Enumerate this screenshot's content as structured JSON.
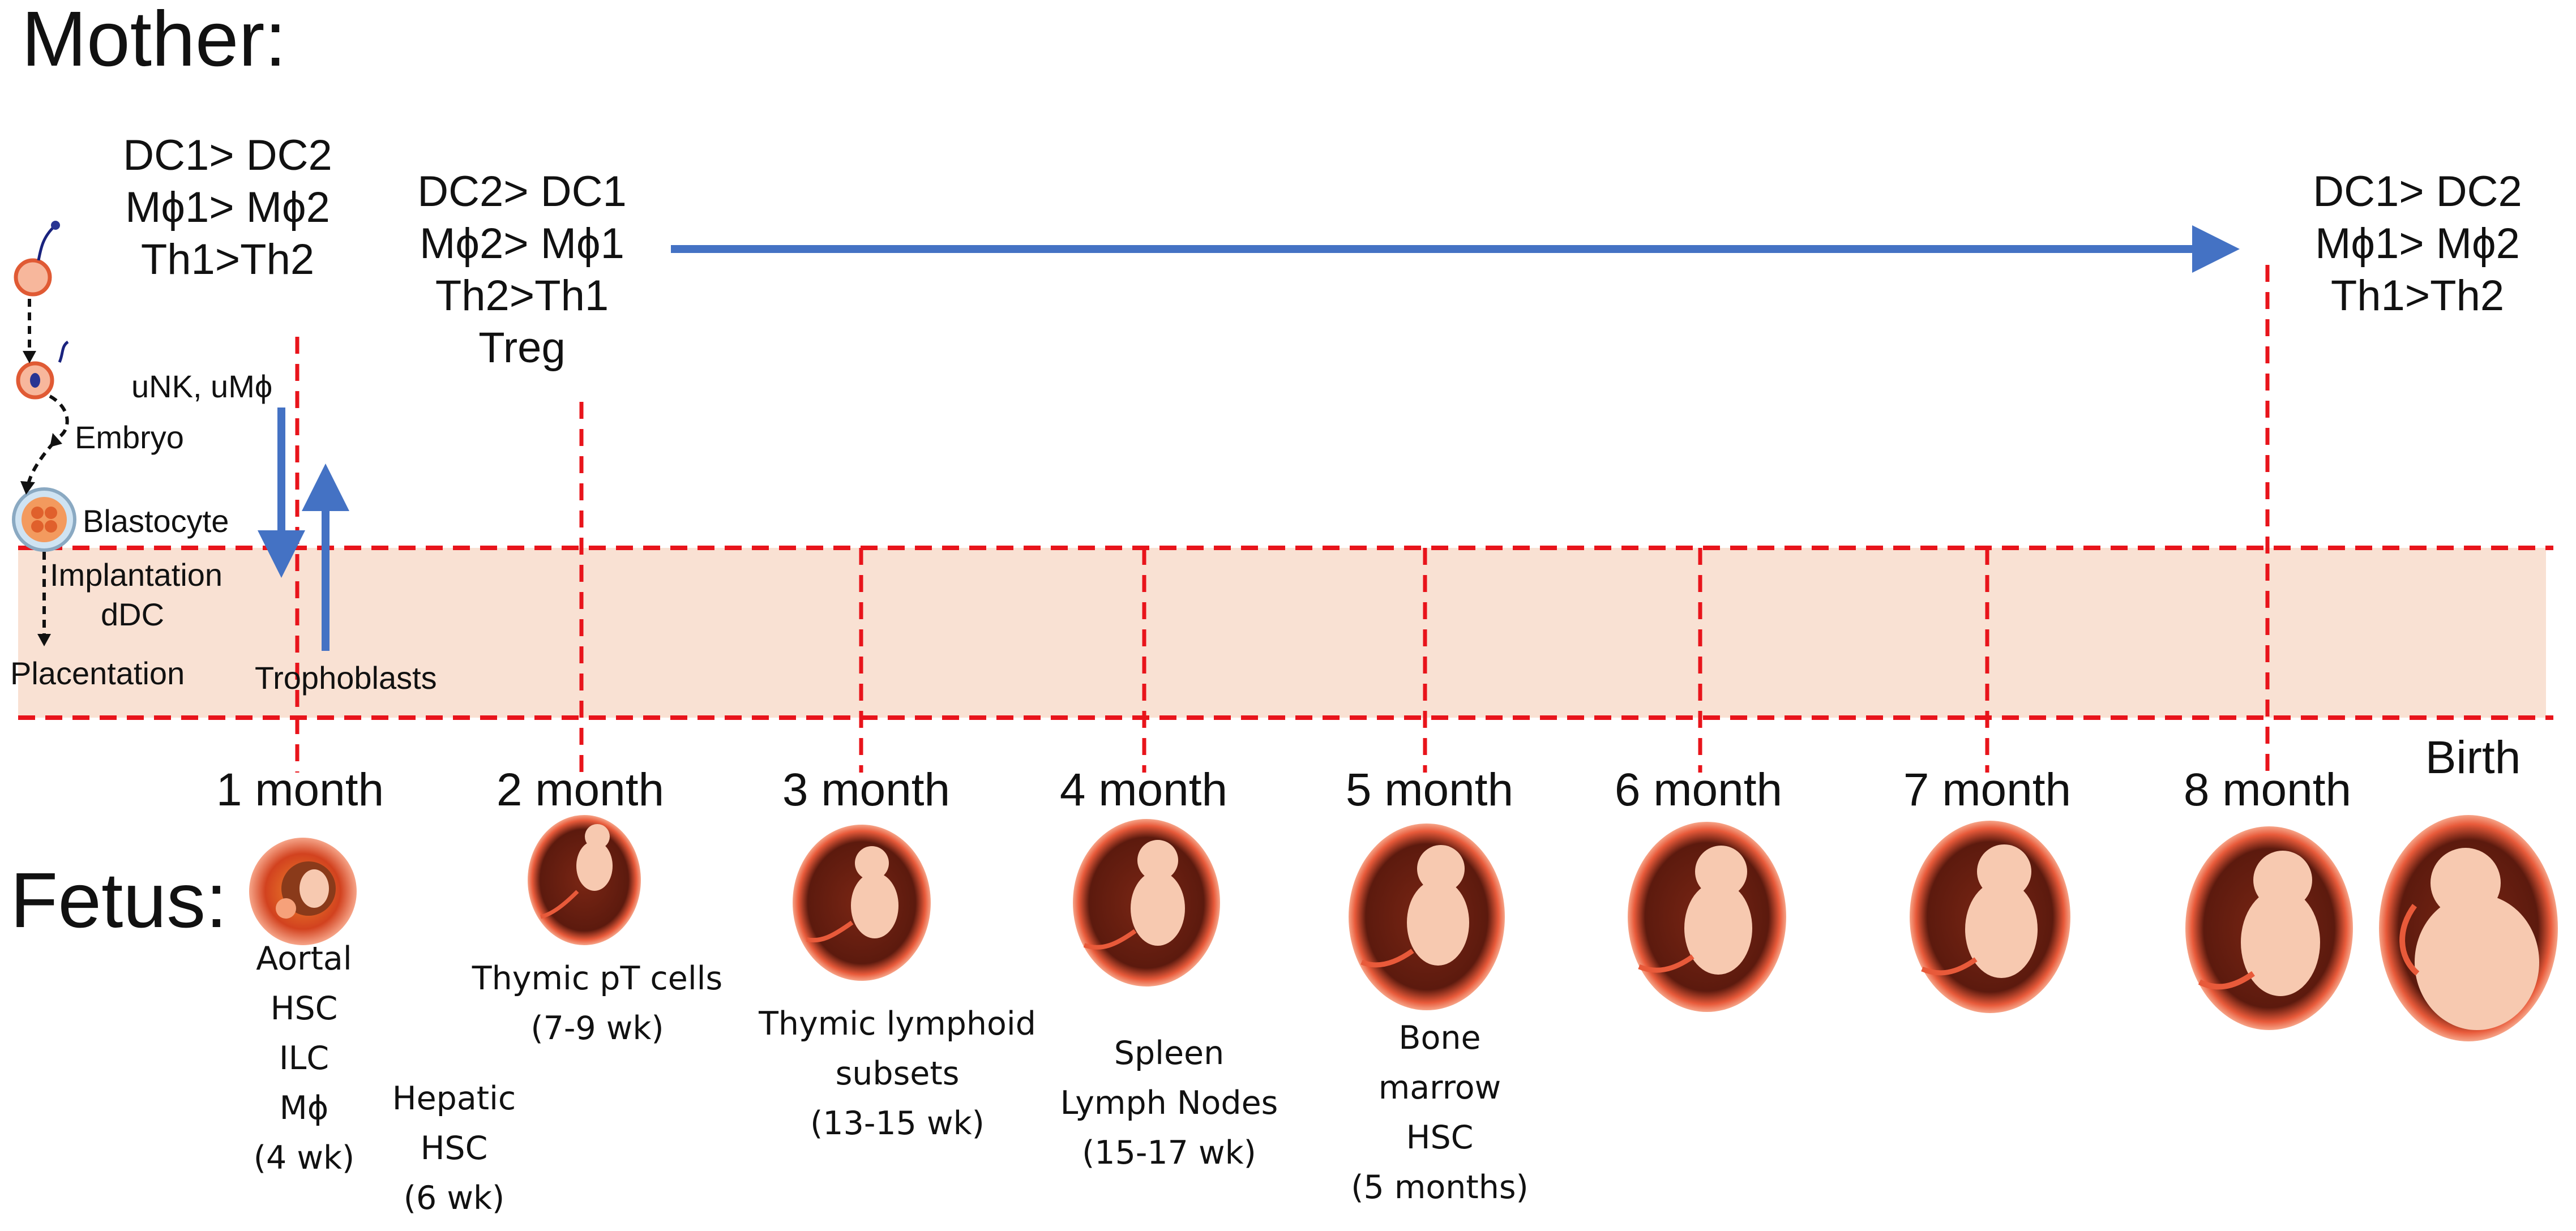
{
  "mother_label": "Mother:",
  "fetus_label": "Fetus:",
  "early_state": [
    "DC1> DC2",
    "Mϕ1> Mϕ2",
    "Th1>Th2"
  ],
  "mid_state": [
    "DC2> DC1",
    "Mϕ2> Mϕ1",
    "Th2>Th1",
    "Treg"
  ],
  "late_state": [
    "DC1> DC2",
    "Mϕ1> Mϕ2",
    "Th1>Th2"
  ],
  "early_stages": {
    "embryo": "Embryo",
    "blastocyte": "Blastocyte",
    "implantation": "Implantation",
    "ddc": "dDC",
    "placentation": "Placentation",
    "unk": "uNK, uMϕ",
    "trophoblasts": "Trophoblasts"
  },
  "months": [
    "1 month",
    "2 month",
    "3 month",
    "4 month",
    "5 month",
    "6 month",
    "7 month",
    "8 month"
  ],
  "birth": "Birth",
  "fetal_events": {
    "m1": [
      "Aortal",
      "HSC",
      "ILC",
      "Mϕ",
      "(4 wk)"
    ],
    "hepatic": [
      "Hepatic",
      "HSC",
      "(6 wk)"
    ],
    "m2": [
      "Thymic pT cells",
      "(7-9 wk)"
    ],
    "m3": [
      "Thymic lymphoid",
      "subsets",
      "(13-15 wk)"
    ],
    "m4": [
      "Spleen",
      "Lymph Nodes",
      "(15-17 wk)"
    ],
    "m5": [
      "Bone",
      "marrow",
      "HSC",
      "(5 months)"
    ]
  },
  "colors": {
    "band_fill": "#f9e1d3",
    "dashed_red": "#e8141b",
    "arrow_blue": "#4472c4",
    "fetus_dark": "#5c1a0e",
    "fetus_rim": "#e85a3a",
    "fetus_body": "#f7c9b0"
  }
}
